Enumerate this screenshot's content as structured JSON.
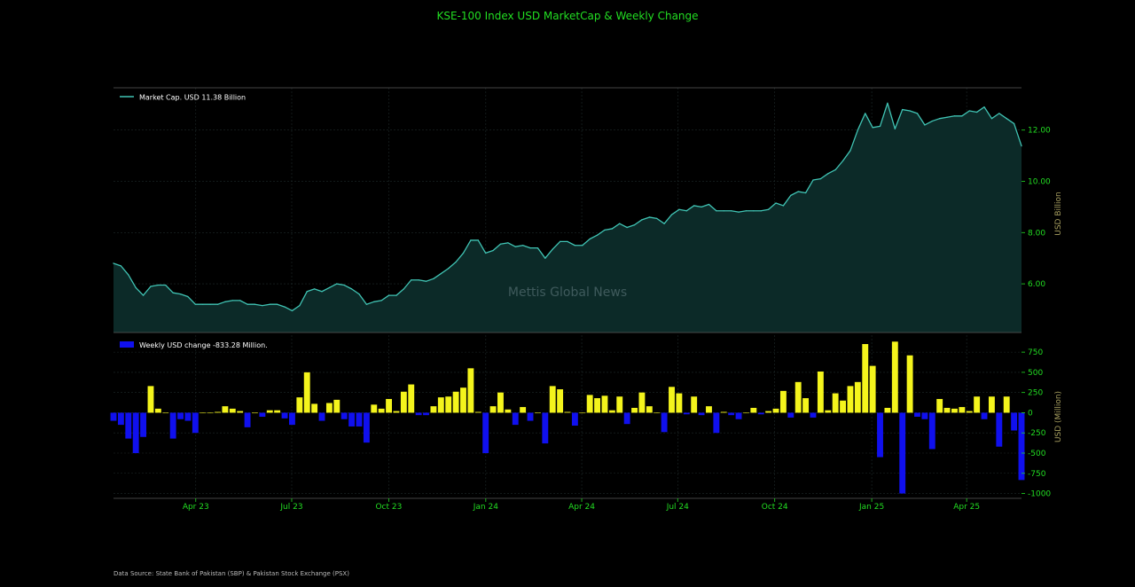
{
  "title": "KSE-100 Index USD MarketCap & Weekly Change",
  "watermark": "Mettis Global News",
  "source": "Data Source: State Bank of Pakistan (SBP) & Pakistan Stock Exchange (PSX)",
  "colors": {
    "background": "#000000",
    "title": "#22dd22",
    "tick": "#22dd22",
    "axis_label": "#a8a060",
    "line": "#40c4b4",
    "area": "#0c2a28",
    "positive_bar": "#f4f41c",
    "negative_bar": "#1010ee",
    "grid": "#1e2a2a",
    "watermark": "#3f5a5c"
  },
  "chart_data": [
    {
      "type": "area",
      "name": "marketcap",
      "ylabel": "USD Billion",
      "ylim": [
        4.1,
        13.65
      ],
      "yticks": [
        6,
        8,
        10,
        12
      ],
      "ytick_labels": [
        "6.00",
        "8.00",
        "10.00",
        "12.00"
      ],
      "grid": true,
      "legend_placement": "top-left",
      "series": [
        {
          "name": "Market Cap. USD 11.38 Billion",
          "values": [
            6.8,
            6.7,
            6.35,
            5.85,
            5.55,
            5.9,
            5.95,
            5.95,
            5.65,
            5.6,
            5.5,
            5.2,
            5.2,
            5.2,
            5.2,
            5.3,
            5.35,
            5.35,
            5.2,
            5.2,
            5.15,
            5.2,
            5.2,
            5.1,
            4.95,
            5.15,
            5.7,
            5.8,
            5.7,
            5.85,
            6.0,
            5.95,
            5.8,
            5.6,
            5.2,
            5.3,
            5.35,
            5.55,
            5.55,
            5.8,
            6.15,
            6.15,
            6.1,
            6.2,
            6.4,
            6.6,
            6.85,
            7.2,
            7.7,
            7.7,
            7.2,
            7.3,
            7.55,
            7.6,
            7.45,
            7.5,
            7.4,
            7.4,
            7.0,
            7.35,
            7.65,
            7.65,
            7.5,
            7.5,
            7.75,
            7.9,
            8.1,
            8.15,
            8.35,
            8.2,
            8.3,
            8.5,
            8.6,
            8.55,
            8.35,
            8.7,
            8.9,
            8.85,
            9.05,
            9.0,
            9.1,
            8.85,
            8.85,
            8.85,
            8.8,
            8.85,
            8.85,
            8.85,
            8.9,
            9.15,
            9.05,
            9.45,
            9.6,
            9.55,
            10.05,
            10.1,
            10.3,
            10.45,
            10.8,
            11.2,
            12.0,
            12.65,
            12.1,
            12.15,
            13.05,
            12.05,
            12.8,
            12.75,
            12.65,
            12.2,
            12.35,
            12.45,
            12.5,
            12.55,
            12.55,
            12.75,
            12.7,
            12.9,
            12.45,
            12.65,
            12.45,
            12.25,
            11.38
          ]
        }
      ]
    },
    {
      "type": "bar",
      "name": "weekly_change",
      "ylabel": "USD (Million)",
      "ylim": [
        -1060,
        960
      ],
      "yticks": [
        -1000,
        -750,
        -500,
        -250,
        0,
        250,
        500,
        750
      ],
      "ytick_labels": [
        "-1000",
        "-750",
        "-500",
        "-250",
        "0",
        "250",
        "500",
        "750"
      ],
      "grid": true,
      "legend_placement": "top-left",
      "series": [
        {
          "name": "Weekly USD change -833.28 Million.",
          "values": [
            -100,
            -150,
            -320,
            -500,
            -300,
            330,
            50,
            0,
            -320,
            -80,
            -100,
            -250,
            0,
            0,
            10,
            80,
            50,
            20,
            -180,
            0,
            -50,
            30,
            30,
            -70,
            -150,
            190,
            500,
            110,
            -100,
            120,
            160,
            -80,
            -170,
            -170,
            -370,
            100,
            50,
            170,
            20,
            260,
            350,
            -30,
            -30,
            80,
            190,
            200,
            260,
            310,
            550,
            10,
            -500,
            80,
            250,
            40,
            -150,
            70,
            -100,
            0,
            -380,
            330,
            290,
            10,
            -160,
            0,
            220,
            180,
            210,
            30,
            200,
            -140,
            60,
            250,
            80,
            0,
            -240,
            320,
            240,
            -20,
            200,
            -30,
            80,
            -250,
            10,
            -30,
            -80,
            0,
            60,
            -20,
            20,
            50,
            270,
            -60,
            380,
            180,
            -60,
            510,
            30,
            240,
            150,
            330,
            380,
            850,
            580,
            -550,
            60,
            880,
            -1000,
            710,
            -50,
            -80,
            -450,
            170,
            60,
            50,
            70,
            20,
            200,
            -80,
            200,
            -420,
            200,
            -220,
            -833.28
          ]
        }
      ]
    }
  ],
  "x_axis": {
    "start": "2023-01-13",
    "end": "2025-05-23",
    "tick_dates": [
      "2023-04-01",
      "2023-07-01",
      "2023-10-01",
      "2024-01-01",
      "2024-04-01",
      "2024-07-01",
      "2024-10-01",
      "2025-01-01",
      "2025-04-01"
    ],
    "tick_labels": [
      "Apr 23",
      "Jul 23",
      "Oct 23",
      "Jan 24",
      "Apr 24",
      "Jul 24",
      "Oct 24",
      "Jan 25",
      "Apr 25"
    ]
  }
}
